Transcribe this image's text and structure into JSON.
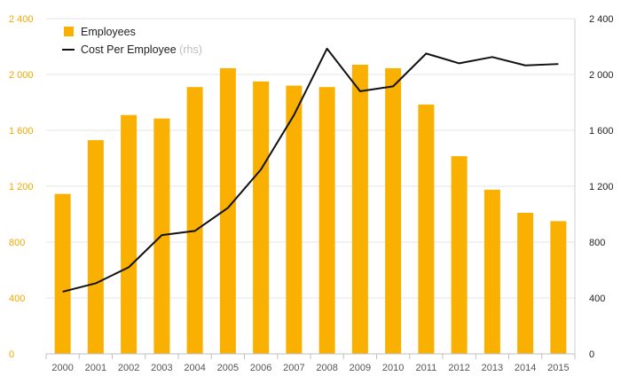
{
  "chart_data": {
    "type": "bar",
    "categories": [
      "2000",
      "2001",
      "2002",
      "2003",
      "2004",
      "2005",
      "2006",
      "2007",
      "2008",
      "2009",
      "2010",
      "2011",
      "2012",
      "2013",
      "2014",
      "2015"
    ],
    "series": [
      {
        "name": "Employees",
        "type": "bar",
        "axis": "left",
        "color": "#f9b000",
        "values": [
          1145,
          1530,
          1710,
          1685,
          1910,
          2045,
          1950,
          1920,
          1910,
          2070,
          2045,
          1785,
          1415,
          1175,
          1010,
          950
        ]
      },
      {
        "name": "Cost Per Employee",
        "suffix": "(rhs)",
        "type": "line",
        "axis": "right",
        "color": "#111111",
        "values": [
          445,
          505,
          620,
          850,
          880,
          1045,
          1320,
          1710,
          2185,
          1880,
          1915,
          2150,
          2080,
          2125,
          2065,
          2075
        ]
      }
    ],
    "ylim_left": [
      0,
      2400
    ],
    "ylim_right": [
      0,
      2400
    ],
    "yticks_left": [
      "0",
      "400",
      "800",
      "1 200",
      "1 600",
      "2 000",
      "2 400"
    ],
    "yticks_right": [
      "0",
      "400",
      "800",
      "1 200",
      "1 600",
      "2 000",
      "2 400"
    ],
    "ytick_values": [
      0,
      400,
      800,
      1200,
      1600,
      2000,
      2400
    ],
    "grid": true,
    "legend_position": "top-left",
    "left_tick_color": "#f0a800",
    "title": "",
    "xlabel": "",
    "ylabel": ""
  }
}
